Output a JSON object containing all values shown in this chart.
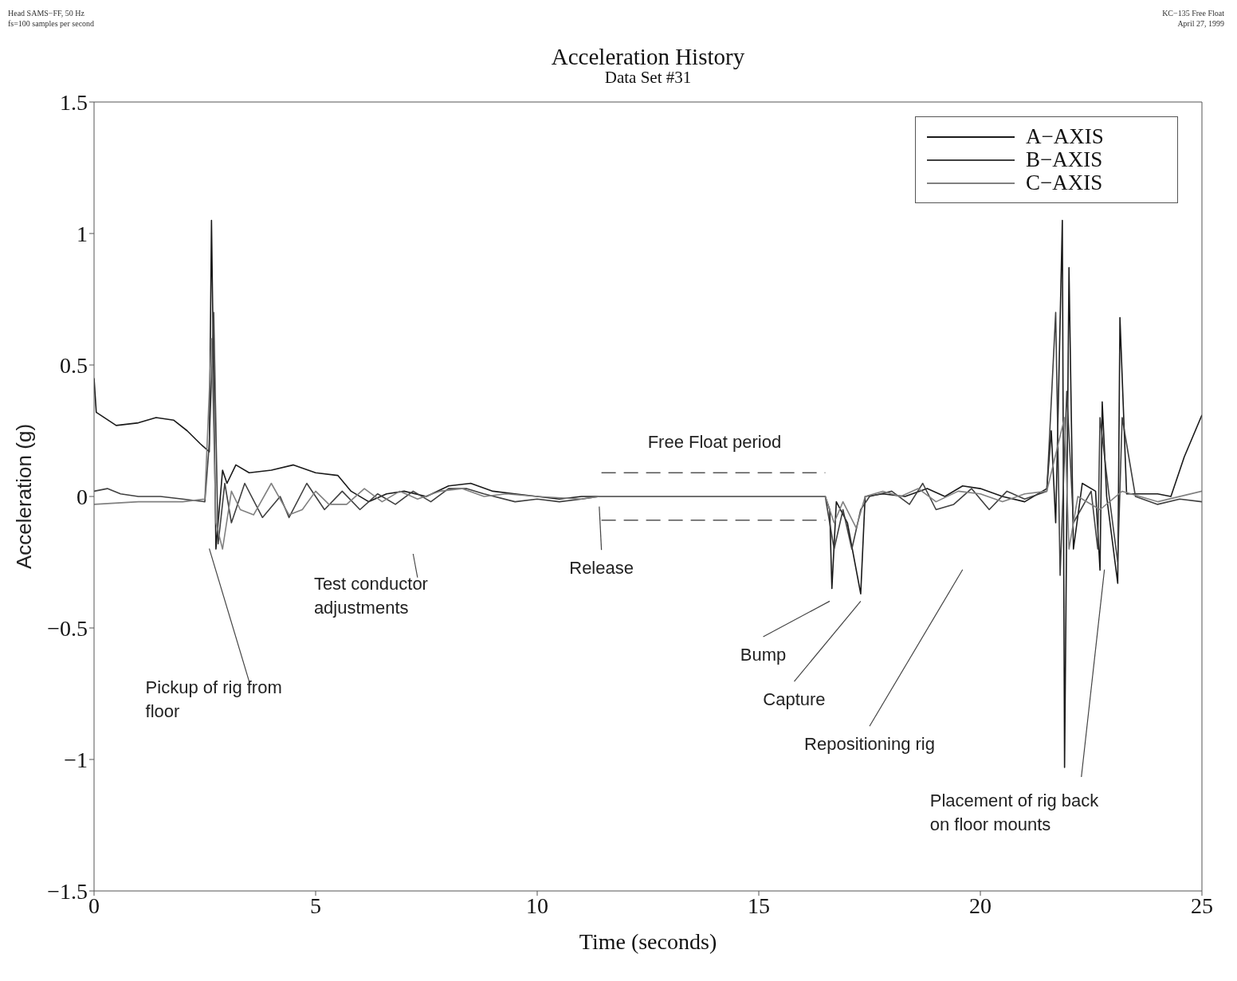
{
  "chart_data": {
    "type": "line",
    "title": "Acceleration History",
    "subtitle": "Data Set #31",
    "xlabel": "Time (seconds)",
    "ylabel": "Acceleration (g)",
    "xlim": [
      0,
      25
    ],
    "xticks": [
      0,
      5,
      10,
      15,
      20,
      25
    ],
    "ylim": [
      -1.5,
      1.5
    ],
    "yticks": [
      {
        "value": -1.5,
        "label": "−1.5"
      },
      {
        "value": -1,
        "label": "−1"
      },
      {
        "value": -0.5,
        "label": "−0.5"
      },
      0,
      0.5,
      1,
      1.5
    ],
    "grid": false,
    "legend": "top right",
    "marker": "none",
    "line_style": "solid",
    "annotations": [
      "Head SAMS−FF, 50 Hz",
      "fs=100 samples per second",
      "KC−135 Free Float",
      "April 27, 1999",
      "Pickup of rig from floor",
      "Test conductor adjustments",
      "Release",
      "Free Float period",
      "Bump",
      "Capture",
      "Repositioning rig",
      "Placement of rig back on floor mounts"
    ],
    "series": [
      {
        "name": "A−AXIS",
        "color": "#1a1a1a",
        "x": [
          0,
          0.05,
          0.5,
          1,
          1.4,
          1.8,
          2.1,
          2.4,
          2.6,
          2.65,
          2.75,
          2.9,
          3.0,
          3.2,
          3.5,
          4.0,
          4.5,
          5.0,
          5.5,
          5.8,
          6.2,
          6.6,
          7,
          7.5,
          8.0,
          8.5,
          9,
          9.5,
          10,
          10.5,
          11,
          11.4,
          16.5,
          16.6,
          16.65,
          16.75,
          17.0,
          17.3,
          17.4,
          17.8,
          18.3,
          18.8,
          19.2,
          19.6,
          20,
          20.5,
          21,
          21.5,
          21.6,
          21.7,
          21.85,
          21.9,
          22.0,
          22.1,
          22.3,
          22.6,
          22.7,
          22.75,
          22.85,
          23.1,
          23.15,
          23.3,
          24,
          24.3,
          24.6,
          25
        ],
        "values": [
          0.45,
          0.32,
          0.27,
          0.28,
          0.3,
          0.29,
          0.25,
          0.2,
          0.17,
          1.05,
          -0.2,
          0.1,
          0.05,
          0.12,
          0.09,
          0.1,
          0.12,
          0.09,
          0.08,
          0.02,
          -0.02,
          0.01,
          0.02,
          0,
          0.04,
          0.05,
          0.02,
          0.01,
          0,
          -0.01,
          0,
          0,
          0,
          -0.05,
          -0.35,
          -0.02,
          -0.1,
          -0.37,
          0,
          0.01,
          0,
          0.03,
          0,
          0.04,
          0.03,
          0,
          -0.02,
          0.03,
          0.25,
          -0.1,
          1.05,
          -1.03,
          0.87,
          -0.2,
          0.05,
          0.02,
          -0.28,
          0.36,
          0,
          -0.33,
          0.68,
          0.01,
          0.01,
          0,
          0.15,
          0.31
        ]
      },
      {
        "name": "B−AXIS",
        "color": "#404040",
        "x": [
          0,
          0.3,
          0.6,
          1,
          1.5,
          2,
          2.5,
          2.6,
          2.7,
          2.8,
          2.95,
          3.1,
          3.4,
          3.8,
          4.2,
          4.4,
          4.8,
          5.2,
          5.6,
          6,
          6.4,
          6.8,
          7.2,
          7.6,
          8,
          8.4,
          8.8,
          9.5,
          10,
          10.5,
          11,
          11.4,
          16.5,
          16.7,
          16.9,
          17.1,
          17.3,
          17.5,
          18,
          18.4,
          18.7,
          19,
          19.4,
          19.8,
          20.2,
          20.6,
          21,
          21.5,
          21.7,
          21.8,
          21.95,
          22.1,
          22.5,
          22.65,
          22.7,
          22.9,
          23.1,
          23.2,
          23.5,
          24,
          24.5,
          25
        ],
        "values": [
          0.02,
          0.03,
          0.01,
          0,
          0,
          -0.01,
          -0.02,
          0.2,
          0.7,
          -0.18,
          0.05,
          -0.1,
          0.05,
          -0.08,
          0,
          -0.08,
          0.05,
          -0.05,
          0.02,
          -0.05,
          0.01,
          -0.03,
          0.02,
          -0.02,
          0.03,
          0.03,
          0.01,
          -0.02,
          -0.01,
          -0.02,
          -0.01,
          0,
          0,
          -0.2,
          -0.05,
          -0.2,
          -0.05,
          0,
          0.02,
          -0.03,
          0.05,
          -0.05,
          -0.03,
          0.03,
          -0.05,
          0.02,
          -0.01,
          0.02,
          0.7,
          -0.3,
          0.4,
          -0.1,
          0.02,
          -0.2,
          0.3,
          0.01,
          -0.25,
          0.3,
          0,
          -0.03,
          -0.01,
          -0.02
        ]
      },
      {
        "name": "C−AXIS",
        "color": "#808080",
        "x": [
          0,
          1,
          2,
          2.5,
          2.65,
          2.75,
          2.9,
          3.1,
          3.3,
          3.6,
          4,
          4.4,
          4.7,
          5,
          5.3,
          5.7,
          6.1,
          6.5,
          6.9,
          7.3,
          7.8,
          8.3,
          8.8,
          9.3,
          10,
          11,
          11.4,
          16.5,
          16.7,
          16.9,
          17.2,
          17.4,
          17.8,
          18.2,
          18.6,
          19,
          19.5,
          20,
          20.5,
          21,
          21.5,
          21.9,
          22,
          22.2,
          22.7,
          23.2,
          24,
          25
        ],
        "values": [
          -0.03,
          -0.02,
          -0.02,
          -0.01,
          0.6,
          -0.1,
          -0.2,
          0.02,
          -0.05,
          -0.07,
          0.05,
          -0.07,
          -0.05,
          0.02,
          -0.03,
          -0.03,
          0.03,
          -0.02,
          0.02,
          -0.01,
          0.02,
          0.03,
          0,
          0.01,
          0,
          -0.01,
          0,
          0,
          -0.1,
          -0.02,
          -0.12,
          0,
          0.02,
          0,
          0.03,
          -0.02,
          0.02,
          0.01,
          -0.02,
          0.01,
          0.02,
          0.3,
          -0.2,
          0,
          -0.05,
          0.02,
          -0.02,
          0.02
        ]
      }
    ]
  }
}
